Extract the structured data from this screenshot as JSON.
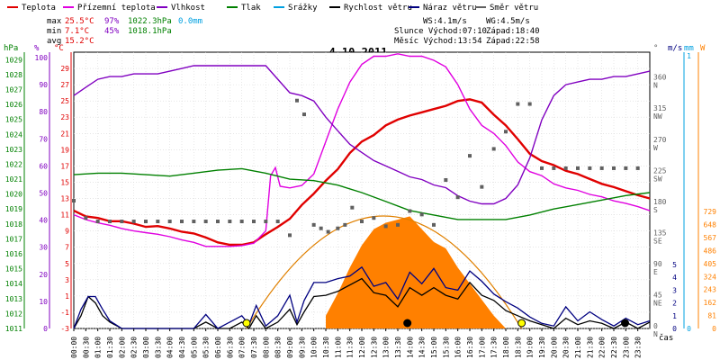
{
  "chart_data": {
    "type": "line",
    "title": "4.10.2011",
    "legend": {
      "placement": "top",
      "items": [
        {
          "label": "Teplota",
          "color": "#e00000"
        },
        {
          "label": "Přízemní teplota",
          "color": "#e000e0"
        },
        {
          "label": "Vlhkost",
          "color": "#8000c0"
        },
        {
          "label": "Tlak",
          "color": "#008000"
        },
        {
          "label": "Srážky",
          "color": "#00a0e0"
        },
        {
          "label": "Rychlost větru",
          "color": "#000000"
        },
        {
          "label": "Náraz větru",
          "color": "#000080"
        },
        {
          "label": "Směr větru",
          "color": "#606060"
        }
      ]
    },
    "stats": {
      "max": {
        "label": "max",
        "temp": "25.5°C",
        "humidity": "97%",
        "pressure": "1022.3hPa",
        "rain": "0.0mm"
      },
      "min": {
        "label": "min",
        "temp": "7.1°C",
        "humidity": "45%",
        "pressure": "1018.1hPa"
      },
      "avg": {
        "label": "avg",
        "temp": "15.2°C"
      }
    },
    "info": {
      "ws": "WS:4.1m/s",
      "wg": "WG:4.5m/s",
      "sun": "Slunce Východ:07:10",
      "sunset": "Západ:18:40",
      "moon": "Měsíc Východ:13:54",
      "moonset": "Západ:22:58"
    },
    "xlabel": "čas",
    "x_ticks": [
      "00:00",
      "00:30",
      "01:00",
      "01:30",
      "02:00",
      "02:30",
      "03:00",
      "03:30",
      "04:00",
      "04:30",
      "05:00",
      "05:30",
      "06:00",
      "06:30",
      "07:00",
      "07:30",
      "08:00",
      "08:30",
      "09:00",
      "09:30",
      "10:00",
      "10:30",
      "11:00",
      "11:30",
      "12:00",
      "12:30",
      "13:00",
      "13:30",
      "14:00",
      "14:30",
      "15:00",
      "15:30",
      "16:00",
      "16:30",
      "17:00",
      "17:30",
      "18:00",
      "18:30",
      "19:00",
      "19:30",
      "20:00",
      "20:30",
      "21:00",
      "21:30",
      "22:00",
      "22:30",
      "23:00",
      "23:30"
    ],
    "axes": {
      "pressure": {
        "label": "hPa",
        "ticks": [
          "1011",
          "1012",
          "1013",
          "1014",
          "1015",
          "1016",
          "1017",
          "1018",
          "1019",
          "1020",
          "1021",
          "1022",
          "1023",
          "1024",
          "1025",
          "1026",
          "1027",
          "1028",
          "1029"
        ],
        "range": [
          1011,
          1029.5
        ]
      },
      "humidity": {
        "label": "%",
        "ticks": [
          "0",
          "10",
          "20",
          "30",
          "40",
          "50",
          "60",
          "70",
          "80",
          "90",
          "100"
        ],
        "range": [
          0,
          102
        ]
      },
      "temperature": {
        "label": "°C",
        "ticks": [
          "-3",
          "-1",
          "1",
          "3",
          "5",
          "7",
          "9",
          "11",
          "13",
          "15",
          "17",
          "19",
          "21",
          "23",
          "25",
          "27",
          "29"
        ],
        "range": [
          -3,
          31
        ]
      },
      "direction": {
        "label": "°",
        "ticks": [
          "0",
          "45",
          "90",
          "135",
          "180",
          "225",
          "270",
          "315",
          "360"
        ],
        "letters": [
          "N",
          "NE",
          "E",
          "SE",
          "S",
          "SW",
          "W",
          "NW",
          "N"
        ],
        "range": [
          0,
          400
        ]
      },
      "wind": {
        "label": "m/s",
        "ticks": [
          "0",
          "1",
          "2",
          "3",
          "4",
          "5"
        ]
      },
      "rain": {
        "label": "mm",
        "ticks": [
          "0",
          "1"
        ]
      },
      "solar": {
        "label": "W",
        "ticks": [
          "0",
          "81",
          "162",
          "243",
          "324",
          "405",
          "486",
          "567",
          "648",
          "729"
        ]
      }
    },
    "series": [
      {
        "name": "Teplota",
        "color": "#e00000",
        "axis": "temperature",
        "x": [
          0,
          0.5,
          1,
          1.5,
          2,
          2.5,
          3,
          3.5,
          4,
          4.5,
          5,
          5.5,
          6,
          6.5,
          7,
          7.5,
          8,
          8.5,
          9,
          9.5,
          10,
          10.5,
          11,
          11.5,
          12,
          12.5,
          13,
          13.5,
          14,
          14.5,
          15,
          15.5,
          16,
          16.5,
          17,
          17.5,
          18,
          18.5,
          19,
          19.5,
          20,
          20.5,
          21,
          21.5,
          22,
          22.5,
          23,
          23.5,
          24
        ],
        "values": [
          11.5,
          10.8,
          10.6,
          10.2,
          10.2,
          9.9,
          9.5,
          9.6,
          9.3,
          8.9,
          8.7,
          8.2,
          7.6,
          7.3,
          7.3,
          7.6,
          8.6,
          9.5,
          10.5,
          12.2,
          13.6,
          15.2,
          16.6,
          18.6,
          20.0,
          20.8,
          22.0,
          22.7,
          23.2,
          23.6,
          24.0,
          24.4,
          25.0,
          25.2,
          24.8,
          23.3,
          22.0,
          20.3,
          18.5,
          17.6,
          17.1,
          16.4,
          16.0,
          15.4,
          14.8,
          14.4,
          13.9,
          13.4,
          13.0
        ]
      },
      {
        "name": "Přízemní teplota",
        "color": "#e000e0",
        "axis": "temperature",
        "x": [
          0,
          0.5,
          1,
          1.5,
          2,
          2.5,
          3,
          3.5,
          4,
          4.5,
          5,
          5.5,
          6,
          6.5,
          7,
          7.5,
          8,
          8.2,
          8.4,
          8.6,
          9,
          9.5,
          10,
          10.5,
          11,
          11.5,
          12,
          12.5,
          13,
          13.5,
          14,
          14.5,
          15,
          15.5,
          16,
          16.5,
          17,
          17.5,
          18,
          18.5,
          19,
          19.5,
          20,
          20.5,
          21,
          21.5,
          22,
          22.5,
          23,
          23.5,
          24
        ],
        "values": [
          11.0,
          10.4,
          10.0,
          9.7,
          9.3,
          9.0,
          8.8,
          8.6,
          8.3,
          7.9,
          7.6,
          7.1,
          7.1,
          7.1,
          7.2,
          7.5,
          9.0,
          15.8,
          16.8,
          14.5,
          14.3,
          14.6,
          16.0,
          20.0,
          24.0,
          27.3,
          29.5,
          30.5,
          30.5,
          30.8,
          30.5,
          30.5,
          30.0,
          29.2,
          27.0,
          24.0,
          22.0,
          21.0,
          19.5,
          17.5,
          16.3,
          15.8,
          14.8,
          14.3,
          14.0,
          13.5,
          13.2,
          12.7,
          12.4,
          12.0,
          11.5
        ]
      },
      {
        "name": "Vlhkost",
        "color": "#8000c0",
        "axis": "humidity",
        "x": [
          0,
          0.5,
          1,
          1.5,
          2,
          2.5,
          3,
          3.5,
          4,
          4.5,
          5,
          5.5,
          6,
          6.5,
          7,
          7.5,
          8,
          8.5,
          9,
          9.5,
          10,
          10.5,
          11,
          11.5,
          12,
          12.5,
          13,
          13.5,
          14,
          14.5,
          15,
          15.5,
          16,
          16.5,
          17,
          17.5,
          18,
          18.5,
          19,
          19.5,
          20,
          20.5,
          21,
          21.5,
          22,
          22.5,
          23,
          23.5,
          24
        ],
        "values": [
          86,
          89,
          92,
          93,
          93,
          94,
          94,
          94,
          95,
          96,
          97,
          97,
          97,
          97,
          97,
          97,
          97,
          92,
          87,
          86,
          84,
          78,
          73,
          68,
          65,
          62,
          60,
          58,
          56,
          55,
          53,
          52,
          49,
          47,
          46,
          46,
          48,
          53,
          63,
          77,
          86,
          90,
          91,
          92,
          92,
          93,
          93,
          94,
          95
        ]
      },
      {
        "name": "Tlak",
        "color": "#008000",
        "axis": "pressure",
        "x": [
          0,
          1,
          2,
          3,
          4,
          5,
          6,
          7,
          8,
          9,
          10,
          11,
          12,
          13,
          14,
          15,
          16,
          17,
          18,
          19,
          20,
          21,
          22,
          23,
          24
        ],
        "values": [
          1021.3,
          1021.4,
          1021.4,
          1021.3,
          1021.2,
          1021.4,
          1021.6,
          1021.7,
          1021.4,
          1021.0,
          1020.9,
          1020.6,
          1020.1,
          1019.5,
          1018.9,
          1018.6,
          1018.3,
          1018.3,
          1018.3,
          1018.6,
          1019.0,
          1019.3,
          1019.6,
          1019.9,
          1020.1
        ]
      },
      {
        "name": "Rychlost větru",
        "color": "#000000",
        "axis": "wind",
        "x": [
          0,
          0.3,
          0.6,
          0.9,
          1.2,
          1.5,
          2,
          3,
          4,
          5,
          5.5,
          6,
          6.5,
          7,
          7.3,
          7.6,
          8,
          8.5,
          9,
          9.3,
          9.6,
          10,
          10.5,
          11,
          11.5,
          12,
          12.5,
          13,
          13.5,
          14,
          14.5,
          15,
          15.5,
          16,
          16.5,
          17,
          17.5,
          18,
          18.5,
          19,
          19.5,
          20,
          20.5,
          21,
          21.5,
          22,
          22.5,
          23,
          23.5,
          24
        ],
        "values": [
          0,
          1,
          2.5,
          2,
          1,
          0.5,
          0,
          0,
          0,
          0,
          0.5,
          0,
          0,
          0.5,
          0,
          1,
          0,
          0.5,
          1.5,
          0.3,
          1.3,
          2.5,
          2.6,
          2.9,
          3.4,
          3.9,
          2.8,
          2.6,
          1.7,
          3.2,
          2.6,
          3.2,
          2.6,
          2.3,
          3.6,
          2.6,
          2.2,
          1.4,
          1.0,
          0.6,
          0.3,
          0,
          0.8,
          0.3,
          0.6,
          0.4,
          0,
          0.5,
          0,
          0.5
        ]
      },
      {
        "name": "Náraz větru",
        "color": "#000080",
        "axis": "wind",
        "x": [
          0,
          0.3,
          0.6,
          0.9,
          1.2,
          1.5,
          2,
          3,
          4,
          5,
          5.5,
          6,
          6.5,
          7,
          7.3,
          7.6,
          8,
          8.5,
          9,
          9.3,
          9.6,
          10,
          10.5,
          11,
          11.5,
          12,
          12.5,
          13,
          13.5,
          14,
          14.5,
          15,
          15.5,
          16,
          16.5,
          17,
          17.5,
          18,
          18.5,
          19,
          19.5,
          20,
          20.5,
          21,
          21.5,
          22,
          22.5,
          23,
          23.5,
          24
        ],
        "values": [
          0,
          1.5,
          2.5,
          2.5,
          1.5,
          0.6,
          0,
          0,
          0,
          0,
          1.1,
          0,
          0.5,
          1.0,
          0.3,
          1.8,
          0.2,
          1.0,
          2.6,
          0.5,
          2.2,
          3.6,
          3.6,
          3.9,
          4.1,
          4.8,
          3.3,
          3.6,
          2.3,
          4.4,
          3.5,
          4.7,
          3.2,
          3.0,
          4.5,
          3.7,
          2.7,
          2.1,
          1.6,
          0.9,
          0.4,
          0.2,
          1.7,
          0.6,
          1.3,
          0.7,
          0.2,
          0.8,
          0.3,
          0.6
        ]
      },
      {
        "name": "Směr větru",
        "color": "#606060",
        "axis": "direction",
        "kind": "scatter",
        "x": [
          0,
          0.5,
          1,
          1.5,
          2,
          2.5,
          3,
          3.5,
          4,
          4.5,
          5,
          5.5,
          6,
          6.5,
          7,
          7.5,
          8,
          8.5,
          9,
          9.3,
          9.6,
          10,
          10.3,
          10.6,
          11,
          11.3,
          11.6,
          12,
          12.5,
          13,
          13.5,
          14,
          14.5,
          15,
          15.5,
          16,
          16.5,
          17,
          17.5,
          18,
          18.5,
          19,
          19.5,
          20,
          20.5,
          21,
          21.5,
          22,
          22.5,
          23,
          23.5
        ],
        "values": [
          185,
          160,
          155,
          155,
          155,
          155,
          155,
          155,
          155,
          155,
          155,
          155,
          155,
          155,
          155,
          155,
          155,
          155,
          135,
          330,
          310,
          150,
          145,
          140,
          145,
          150,
          175,
          155,
          160,
          148,
          150,
          170,
          165,
          150,
          215,
          190,
          250,
          205,
          260,
          285,
          325,
          325,
          232,
          232,
          232,
          232,
          232,
          232,
          232,
          232,
          232
        ]
      },
      {
        "name": "Solar",
        "color": "#ff8000",
        "axis": "solar",
        "kind": "area",
        "x": [
          10.5,
          11,
          11.5,
          12,
          12.5,
          13,
          13.5,
          14,
          14.5,
          15,
          15.5,
          16,
          16.5,
          17,
          17.5,
          18
        ],
        "values": [
          80,
          220,
          380,
          520,
          620,
          660,
          680,
          700,
          620,
          540,
          500,
          380,
          280,
          180,
          80,
          0
        ]
      }
    ]
  }
}
